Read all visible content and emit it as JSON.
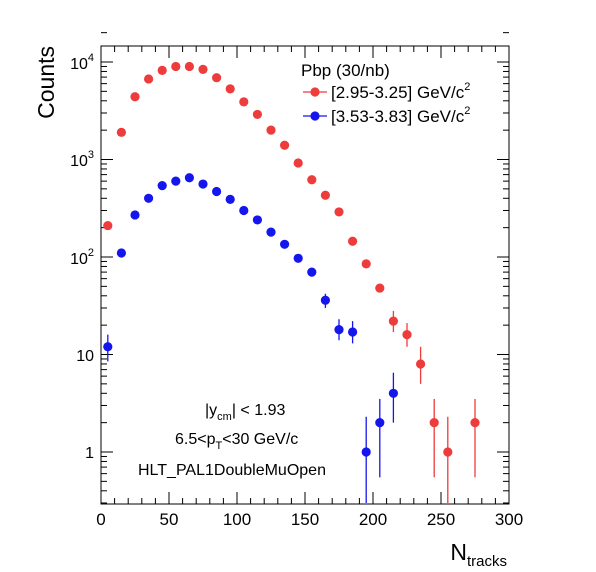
{
  "chart_data": {
    "type": "scatter",
    "xlabel_main": "N",
    "xlabel_sub": "tracks",
    "ylabel": "Counts",
    "xlim": [
      0,
      300
    ],
    "ylim": [
      0.3,
      25000
    ],
    "y_scale": "log",
    "grid": false,
    "legend_placement": "top-right",
    "legend_title": "Pbp (30/nb)",
    "x_ticks": [
      "0",
      "50",
      "100",
      "150",
      "200",
      "250",
      "300"
    ],
    "y_tick_labels": {
      "one": "1",
      "ten": "10",
      "e2": "10",
      "e2_exp": "2",
      "e3": "10",
      "e3_exp": "3",
      "e4": "10",
      "e4_exp": "4"
    },
    "annotations": {
      "line1_pre": "|y",
      "line1_sub": "cm",
      "line1_post": "| < 1.93",
      "line2_pre": "6.5<p",
      "line2_sub": "T",
      "line2_post": "<30 GeV/c",
      "line3": "HLT_PAL1DoubleMuOpen"
    },
    "series": [
      {
        "name": "[2.95-3.25] GeV/c",
        "name_sup": "2",
        "color": "#ee3b3b",
        "points": [
          {
            "x": 5,
            "y": 210
          },
          {
            "x": 15,
            "y": 1900
          },
          {
            "x": 25,
            "y": 4400
          },
          {
            "x": 35,
            "y": 6700
          },
          {
            "x": 45,
            "y": 8200
          },
          {
            "x": 55,
            "y": 9000
          },
          {
            "x": 65,
            "y": 9000
          },
          {
            "x": 75,
            "y": 8400
          },
          {
            "x": 85,
            "y": 6900
          },
          {
            "x": 95,
            "y": 5300
          },
          {
            "x": 105,
            "y": 3900
          },
          {
            "x": 115,
            "y": 2900
          },
          {
            "x": 125,
            "y": 2000
          },
          {
            "x": 135,
            "y": 1400
          },
          {
            "x": 145,
            "y": 920
          },
          {
            "x": 155,
            "y": 620
          },
          {
            "x": 165,
            "y": 430
          },
          {
            "x": 175,
            "y": 290
          },
          {
            "x": 185,
            "y": 145
          },
          {
            "x": 195,
            "y": 85
          },
          {
            "x": 205,
            "y": 48
          },
          {
            "x": 215,
            "y": 22,
            "err_lo": 17,
            "err_hi": 28
          },
          {
            "x": 225,
            "y": 16,
            "err_lo": 12,
            "err_hi": 21
          },
          {
            "x": 235,
            "y": 8,
            "err_lo": 5,
            "err_hi": 12
          },
          {
            "x": 245,
            "y": 2,
            "err_lo": 0.55,
            "err_hi": 3.5
          },
          {
            "x": 255,
            "y": 1,
            "err_lo": 0.3,
            "err_hi": 2.3
          },
          {
            "x": 275,
            "y": 2,
            "err_lo": 0.55,
            "err_hi": 3.5
          }
        ]
      },
      {
        "name": "[3.53-3.83] GeV/c",
        "name_sup": "2",
        "color": "#1515ee",
        "points": [
          {
            "x": 5,
            "y": 12,
            "err_lo": 8.5,
            "err_hi": 16
          },
          {
            "x": 15,
            "y": 110
          },
          {
            "x": 25,
            "y": 270
          },
          {
            "x": 35,
            "y": 400
          },
          {
            "x": 45,
            "y": 540
          },
          {
            "x": 55,
            "y": 600
          },
          {
            "x": 65,
            "y": 650
          },
          {
            "x": 75,
            "y": 560
          },
          {
            "x": 85,
            "y": 470
          },
          {
            "x": 95,
            "y": 390
          },
          {
            "x": 105,
            "y": 300
          },
          {
            "x": 115,
            "y": 240
          },
          {
            "x": 125,
            "y": 180
          },
          {
            "x": 135,
            "y": 135
          },
          {
            "x": 145,
            "y": 97
          },
          {
            "x": 155,
            "y": 70
          },
          {
            "x": 165,
            "y": 36,
            "err_lo": 30,
            "err_hi": 42
          },
          {
            "x": 175,
            "y": 18,
            "err_lo": 14,
            "err_hi": 23
          },
          {
            "x": 185,
            "y": 17,
            "err_lo": 13,
            "err_hi": 22
          },
          {
            "x": 195,
            "y": 1,
            "err_lo": 0.3,
            "err_hi": 2.3
          },
          {
            "x": 205,
            "y": 2,
            "err_lo": 0.55,
            "err_hi": 3.5
          },
          {
            "x": 215,
            "y": 4,
            "err_lo": 2,
            "err_hi": 6.5
          }
        ]
      }
    ]
  }
}
